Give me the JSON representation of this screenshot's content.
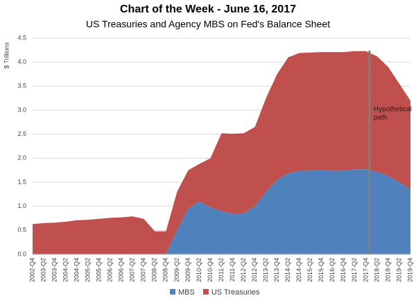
{
  "chart_data": {
    "type": "stacked_area",
    "title": "Chart of the Week - June 16, 2017",
    "subtitle": "US Treasuries and Agency MBS on Fed's Balance Sheet",
    "y_label": "$ Trillions",
    "annotation": [
      "Hypothetical",
      "path"
    ],
    "categories": [
      "2002-Q4",
      "2003-Q2",
      "2003-Q4",
      "2004-Q2",
      "2004-Q4",
      "2005-Q2",
      "2005-Q4",
      "2006-Q2",
      "2006-Q4",
      "2007-Q2",
      "2007-Q4",
      "2008-Q2",
      "2008-Q4",
      "2009-Q2",
      "2009-Q4",
      "2010-Q2",
      "2010-Q4",
      "2011-Q2",
      "2011-Q4",
      "2012-Q2",
      "2012-Q4",
      "2013-Q2",
      "2013-Q4",
      "2014-Q2",
      "2014-Q4",
      "2015-Q2",
      "2015-Q4",
      "2016-Q2",
      "2016-Q4",
      "2017-Q2",
      "2017-Q4",
      "2018-Q2",
      "2018-Q4",
      "2019-Q2",
      "2019-Q4"
    ],
    "series": [
      {
        "name": "MBS",
        "color": "#4f81bd",
        "values": [
          0,
          0,
          0,
          0,
          0,
          0,
          0,
          0,
          0,
          0,
          0,
          0,
          0,
          0.5,
          0.95,
          1.1,
          0.98,
          0.9,
          0.84,
          0.85,
          1.0,
          1.3,
          1.55,
          1.68,
          1.74,
          1.74,
          1.75,
          1.74,
          1.74,
          1.77,
          1.77,
          1.72,
          1.63,
          1.5,
          1.35
        ]
      },
      {
        "name": "US Treasuries",
        "color": "#c0504d",
        "values": [
          0.63,
          0.65,
          0.66,
          0.68,
          0.71,
          0.72,
          0.74,
          0.76,
          0.77,
          0.79,
          0.74,
          0.48,
          0.48,
          0.8,
          0.8,
          0.78,
          1.02,
          1.62,
          1.67,
          1.67,
          1.65,
          1.95,
          2.2,
          2.42,
          2.45,
          2.46,
          2.46,
          2.47,
          2.47,
          2.46,
          2.46,
          2.4,
          2.27,
          2.05,
          1.85
        ]
      }
    ],
    "ylim": [
      0,
      4.5
    ],
    "yticks": [
      {
        "value": 0,
        "label": "0.0"
      },
      0.5,
      {
        "value": 1,
        "label": "1.0"
      },
      1.5,
      {
        "value": 2,
        "label": "2.0"
      },
      2.5,
      {
        "value": 3,
        "label": "3.0"
      },
      3.5,
      {
        "value": 4,
        "label": "4.0"
      },
      4.5
    ],
    "grid": true
  }
}
